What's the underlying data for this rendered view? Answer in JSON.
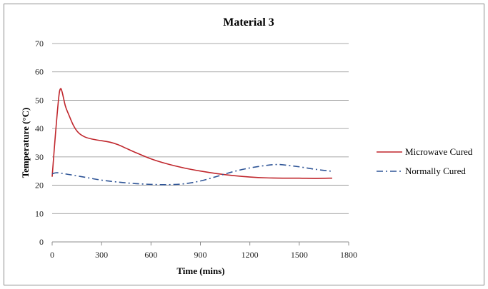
{
  "colors": {
    "microwave": "#c0272d",
    "normal": "#2f5597",
    "grid": "#8c8c8c",
    "background": "#ffffff"
  },
  "chart_data": {
    "type": "line",
    "title": "Material 3",
    "xlabel": "Time (mins)",
    "ylabel": "Temperature (°C)",
    "xlim": [
      0,
      1800
    ],
    "ylim": [
      0,
      70
    ],
    "xticks": [
      0,
      300,
      600,
      900,
      1200,
      1500,
      1800
    ],
    "yticks": [
      0,
      10,
      20,
      30,
      40,
      50,
      60,
      70
    ],
    "grid": "horizontal",
    "legend_position": "right",
    "series": [
      {
        "name": "Microwave Cured",
        "color": "#c0272d",
        "style": "solid",
        "x": [
          0,
          20,
          40,
          50,
          60,
          80,
          100,
          130,
          160,
          200,
          250,
          300,
          350,
          400,
          450,
          500,
          600,
          700,
          800,
          900,
          1000,
          1100,
          1200,
          1300,
          1400,
          1500,
          1600,
          1700
        ],
        "y": [
          23,
          38,
          51,
          54,
          53,
          48,
          45,
          41,
          38.5,
          37,
          36.2,
          35.7,
          35.2,
          34.3,
          33,
          31.7,
          29.3,
          27.5,
          26.1,
          25,
          24.1,
          23.4,
          22.9,
          22.6,
          22.5,
          22.5,
          22.4,
          22.5
        ]
      },
      {
        "name": "Normally Cured",
        "color": "#2f5597",
        "style": "dashdot",
        "x": [
          0,
          30,
          100,
          200,
          300,
          400,
          500,
          600,
          700,
          800,
          900,
          1000,
          1100,
          1200,
          1300,
          1360,
          1400,
          1500,
          1600,
          1700
        ],
        "y": [
          24,
          24.4,
          23.8,
          22.8,
          21.8,
          21.1,
          20.6,
          20.3,
          20.2,
          20.5,
          21.5,
          23.1,
          24.8,
          26.1,
          27,
          27.3,
          27.2,
          26.5,
          25.6,
          24.9
        ]
      }
    ]
  }
}
